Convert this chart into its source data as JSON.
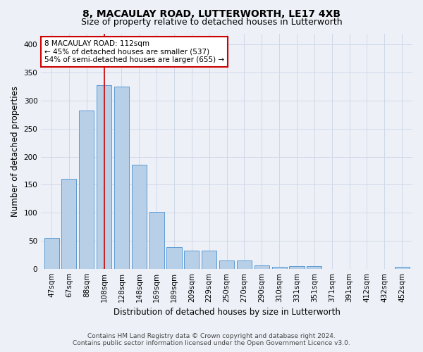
{
  "title": "8, MACAULAY ROAD, LUTTERWORTH, LE17 4XB",
  "subtitle": "Size of property relative to detached houses in Lutterworth",
  "xlabel": "Distribution of detached houses by size in Lutterworth",
  "ylabel": "Number of detached properties",
  "categories": [
    "47sqm",
    "67sqm",
    "88sqm",
    "108sqm",
    "128sqm",
    "148sqm",
    "169sqm",
    "189sqm",
    "209sqm",
    "229sqm",
    "250sqm",
    "270sqm",
    "290sqm",
    "310sqm",
    "331sqm",
    "351sqm",
    "371sqm",
    "391sqm",
    "412sqm",
    "432sqm",
    "452sqm"
  ],
  "values": [
    55,
    160,
    283,
    328,
    325,
    185,
    102,
    38,
    32,
    32,
    15,
    15,
    6,
    3,
    4,
    4,
    0,
    0,
    0,
    0,
    3
  ],
  "bar_color": "#b8cfe8",
  "bar_edge_color": "#5b9bd5",
  "vline_index": 3,
  "vline_color": "#cc0000",
  "annotation_text_line1": "8 MACAULAY ROAD: 112sqm",
  "annotation_text_line2": "← 45% of detached houses are smaller (537)",
  "annotation_text_line3": "54% of semi-detached houses are larger (655) →",
  "annotation_box_facecolor": "#ffffff",
  "annotation_box_edgecolor": "#cc0000",
  "grid_color": "#d0d8e8",
  "background_color": "#edf1f7",
  "footer_line1": "Contains HM Land Registry data © Crown copyright and database right 2024.",
  "footer_line2": "Contains public sector information licensed under the Open Government Licence v3.0.",
  "ylim": [
    0,
    420
  ],
  "yticks": [
    0,
    50,
    100,
    150,
    200,
    250,
    300,
    350,
    400
  ],
  "title_fontsize": 10,
  "subtitle_fontsize": 9,
  "tick_fontsize": 7.5,
  "ylabel_fontsize": 8.5,
  "xlabel_fontsize": 8.5,
  "annotation_fontsize": 7.5,
  "footer_fontsize": 6.5
}
